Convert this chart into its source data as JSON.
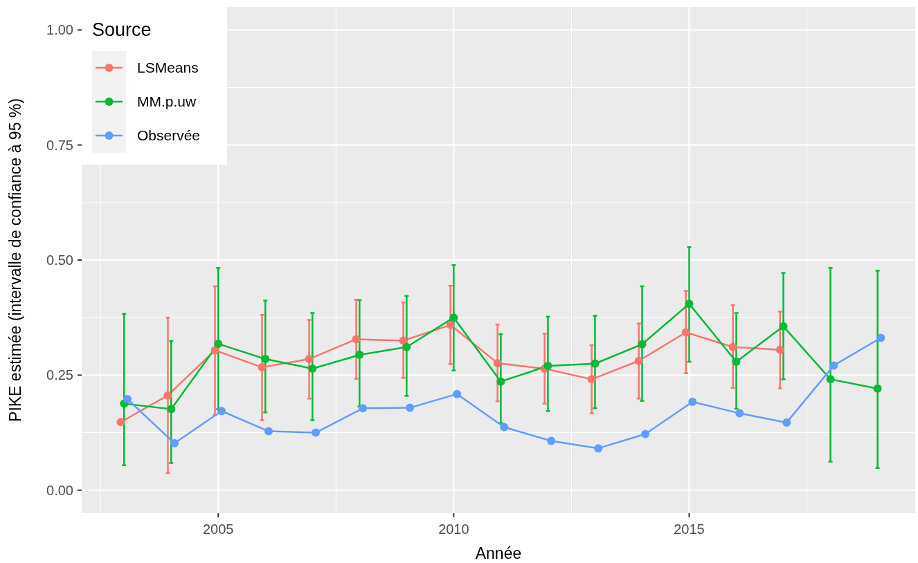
{
  "chart_data": {
    "type": "line",
    "xlabel": "Année",
    "ylabel": "PIKE estimée (intervalle de confiance à 95 %)",
    "legend_title": "Source",
    "xlim": [
      2002.1,
      2019.8
    ],
    "ylim": [
      -0.05,
      1.05
    ],
    "xticks": [
      2005,
      2010,
      2015
    ],
    "yticks": [
      {
        "value": 0,
        "label": "0.00"
      },
      {
        "value": 0.25,
        "label": "0.25"
      },
      {
        "value": 0.5,
        "label": "0.50"
      },
      {
        "value": 0.75,
        "label": "0.75"
      },
      {
        "value": 1,
        "label": "1.00"
      }
    ],
    "grid": true,
    "legend": "top left",
    "marker": "circle",
    "line_style": "solid",
    "series": [
      {
        "name": "LSMeans",
        "color": "#f8766d",
        "x": [
          2002.93,
          2003.93,
          2004.93,
          2005.93,
          2006.93,
          2007.93,
          2008.93,
          2009.93,
          2010.93,
          2011.93,
          2012.93,
          2013.93,
          2014.93,
          2015.93,
          2016.93
        ],
        "values": [
          0.148,
          0.206,
          0.304,
          0.267,
          0.285,
          0.328,
          0.325,
          0.359,
          0.276,
          0.264,
          0.241,
          0.281,
          0.343,
          0.311,
          0.305
        ],
        "errors": [
          null,
          [
            0.037,
            0.375
          ],
          [
            0.164,
            0.443
          ],
          [
            0.152,
            0.381
          ],
          [
            0.199,
            0.37
          ],
          [
            0.242,
            0.414
          ],
          [
            0.244,
            0.408
          ],
          [
            0.274,
            0.444
          ],
          [
            0.193,
            0.36
          ],
          [
            0.188,
            0.34
          ],
          [
            0.167,
            0.315
          ],
          [
            0.199,
            0.362
          ],
          [
            0.254,
            0.433
          ],
          [
            0.222,
            0.402
          ],
          [
            0.221,
            0.388
          ]
        ]
      },
      {
        "name": "MM.p.uw",
        "color": "#00ba38",
        "x": [
          2003,
          2004,
          2005,
          2006,
          2007,
          2008,
          2009,
          2010,
          2011,
          2012,
          2013,
          2014,
          2015,
          2016,
          2017,
          2018,
          2019
        ],
        "values": [
          0.188,
          0.176,
          0.318,
          0.285,
          0.264,
          0.294,
          0.311,
          0.375,
          0.236,
          0.27,
          0.275,
          0.317,
          0.405,
          0.279,
          0.356,
          0.241,
          0.221
        ],
        "errors": [
          [
            0.054,
            0.383
          ],
          [
            0.059,
            0.324
          ],
          [
            0.176,
            0.483
          ],
          [
            0.169,
            0.412
          ],
          [
            0.152,
            0.385
          ],
          [
            0.182,
            0.413
          ],
          [
            0.205,
            0.422
          ],
          [
            0.26,
            0.489
          ],
          [
            0.146,
            0.339
          ],
          [
            0.172,
            0.377
          ],
          [
            0.178,
            0.379
          ],
          [
            0.194,
            0.443
          ],
          [
            0.279,
            0.528
          ],
          [
            0.177,
            0.385
          ],
          [
            0.241,
            0.472
          ],
          [
            0.062,
            0.483
          ],
          [
            0.048,
            0.477
          ]
        ]
      },
      {
        "name": "Observée",
        "color": "#619cff",
        "x": [
          2003.07,
          2004.07,
          2005.07,
          2006.07,
          2007.07,
          2008.07,
          2009.07,
          2010.07,
          2011.07,
          2012.07,
          2013.07,
          2014.07,
          2015.07,
          2016.07,
          2017.07,
          2018.07,
          2019.07
        ],
        "values": [
          0.198,
          0.102,
          0.172,
          0.128,
          0.125,
          0.178,
          0.179,
          0.209,
          0.137,
          0.107,
          0.091,
          0.122,
          0.192,
          0.167,
          0.147,
          0.271,
          0.331
        ]
      }
    ]
  }
}
